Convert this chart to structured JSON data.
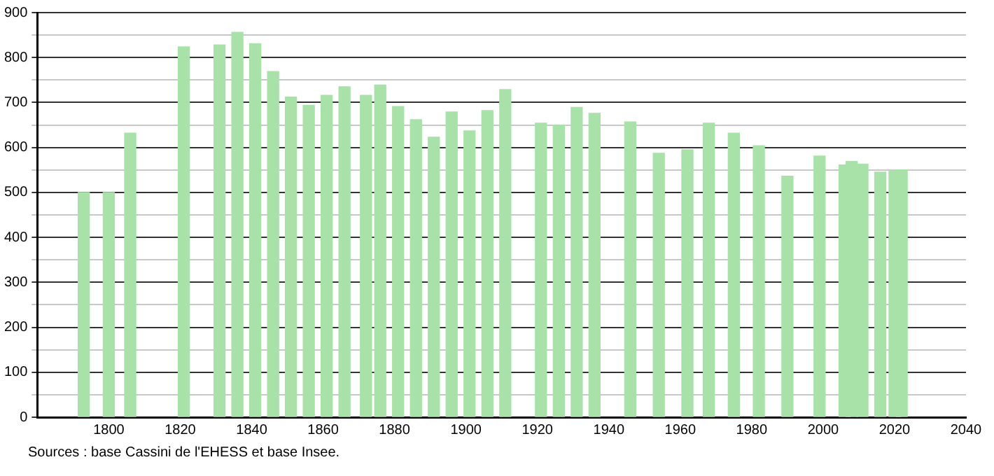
{
  "chart_data": {
    "type": "bar",
    "x": [
      1793,
      1800,
      1806,
      1821,
      1831,
      1836,
      1841,
      1846,
      1851,
      1856,
      1861,
      1866,
      1872,
      1876,
      1881,
      1886,
      1891,
      1896,
      1901,
      1906,
      1911,
      1921,
      1926,
      1931,
      1936,
      1946,
      1954,
      1962,
      1968,
      1975,
      1982,
      1990,
      1999,
      2006,
      2008,
      2011,
      2016,
      2020,
      2022
    ],
    "values": [
      500,
      500,
      632,
      824,
      828,
      856,
      831,
      769,
      712,
      694,
      716,
      735,
      716,
      739,
      691,
      662,
      623,
      679,
      637,
      682,
      729,
      654,
      650,
      689,
      676,
      657,
      587,
      595,
      654,
      632,
      604,
      536,
      581,
      561,
      569,
      563,
      545,
      548,
      550
    ],
    "color": "#a8e2a8",
    "xlim": [
      1780,
      2040
    ],
    "xticks": [
      1800,
      1820,
      1840,
      1860,
      1880,
      1900,
      1920,
      1940,
      1960,
      1980,
      2000,
      2020,
      2040
    ],
    "ylim": [
      0,
      900
    ],
    "yticks": [
      0,
      {
        "value": 50,
        "label": null
      },
      100,
      {
        "value": 150,
        "label": null
      },
      200,
      {
        "value": 250,
        "label": null
      },
      300,
      {
        "value": 350,
        "label": null
      },
      400,
      {
        "value": 450,
        "label": null
      },
      500,
      {
        "value": 550,
        "label": null
      },
      600,
      {
        "value": 650,
        "label": null
      },
      700,
      {
        "value": 750,
        "label": null
      },
      800,
      {
        "value": 850,
        "label": null
      },
      900
    ],
    "grid": "y",
    "annotations": [
      "Sources : base Cassini de l'EHESS et base Insee."
    ]
  }
}
